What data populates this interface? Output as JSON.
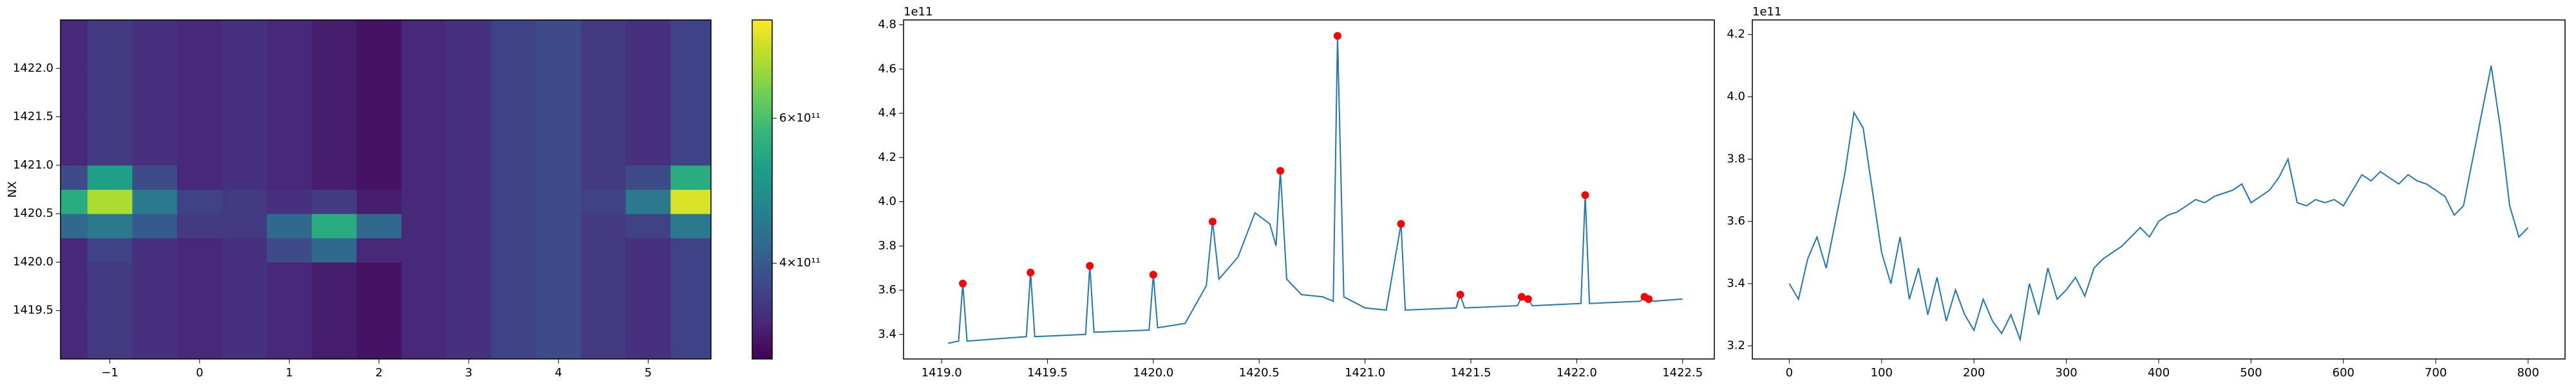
{
  "chart_data": [
    {
      "type": "heatmap",
      "ylabel": "NX",
      "colormap": "viridis",
      "colorscale": "log",
      "x": [
        -1.55,
        -1.25,
        -0.75,
        -0.25,
        0.25,
        0.75,
        1.25,
        1.75,
        2.25,
        2.75,
        3.25,
        3.75,
        4.25,
        4.75,
        5.25,
        5.7
      ],
      "y": [
        1419.0,
        1419.5,
        1420.0,
        1420.25,
        1420.5,
        1420.75,
        1421.0,
        1421.5,
        1422.0,
        1422.5
      ],
      "z": [
        [
          340000000000.0,
          360000000000.0,
          350000000000.0,
          340000000000.0,
          350000000000.0,
          340000000000.0,
          330000000000.0,
          320000000000.0,
          340000000000.0,
          350000000000.0,
          370000000000.0,
          380000000000.0,
          360000000000.0,
          350000000000.0,
          370000000000.0
        ],
        [
          340000000000.0,
          360000000000.0,
          350000000000.0,
          340000000000.0,
          350000000000.0,
          340000000000.0,
          330000000000.0,
          320000000000.0,
          340000000000.0,
          350000000000.0,
          370000000000.0,
          380000000000.0,
          360000000000.0,
          350000000000.0,
          370000000000.0
        ],
        [
          340000000000.0,
          370000000000.0,
          350000000000.0,
          340000000000.0,
          350000000000.0,
          380000000000.0,
          420000000000.0,
          340000000000.0,
          340000000000.0,
          350000000000.0,
          370000000000.0,
          380000000000.0,
          360000000000.0,
          350000000000.0,
          370000000000.0
        ],
        [
          420000000000.0,
          450000000000.0,
          400000000000.0,
          360000000000.0,
          360000000000.0,
          420000000000.0,
          550000000000.0,
          420000000000.0,
          340000000000.0,
          350000000000.0,
          370000000000.0,
          380000000000.0,
          360000000000.0,
          370000000000.0,
          450000000000.0
        ],
        [
          550000000000.0,
          700000000000.0,
          450000000000.0,
          370000000000.0,
          360000000000.0,
          350000000000.0,
          360000000000.0,
          330000000000.0,
          340000000000.0,
          350000000000.0,
          370000000000.0,
          380000000000.0,
          370000000000.0,
          450000000000.0,
          750000000000.0
        ],
        [
          380000000000.0,
          520000000000.0,
          380000000000.0,
          340000000000.0,
          350000000000.0,
          340000000000.0,
          330000000000.0,
          320000000000.0,
          340000000000.0,
          350000000000.0,
          370000000000.0,
          380000000000.0,
          360000000000.0,
          380000000000.0,
          550000000000.0
        ],
        [
          340000000000.0,
          360000000000.0,
          350000000000.0,
          340000000000.0,
          350000000000.0,
          340000000000.0,
          330000000000.0,
          320000000000.0,
          340000000000.0,
          350000000000.0,
          370000000000.0,
          380000000000.0,
          360000000000.0,
          350000000000.0,
          370000000000.0
        ],
        [
          340000000000.0,
          360000000000.0,
          350000000000.0,
          340000000000.0,
          350000000000.0,
          340000000000.0,
          330000000000.0,
          320000000000.0,
          340000000000.0,
          350000000000.0,
          370000000000.0,
          380000000000.0,
          360000000000.0,
          350000000000.0,
          370000000000.0
        ],
        [
          340000000000.0,
          360000000000.0,
          350000000000.0,
          340000000000.0,
          350000000000.0,
          340000000000.0,
          330000000000.0,
          320000000000.0,
          340000000000.0,
          350000000000.0,
          370000000000.0,
          380000000000.0,
          360000000000.0,
          350000000000.0,
          370000000000.0
        ]
      ],
      "xlim": [
        -1.55,
        5.7
      ],
      "ylim": [
        1419.0,
        1422.5
      ],
      "xticks": [
        {
          "value": -1,
          "label": "−1"
        },
        0,
        1,
        2,
        3,
        4,
        5
      ],
      "yticks": [
        1419.5,
        {
          "value": 1420.0,
          "label": "1420.0"
        },
        1420.5,
        {
          "value": 1421.0,
          "label": "1421.0"
        },
        1421.5,
        {
          "value": 1422.0,
          "label": "1422.0"
        }
      ],
      "clim": [
        306000000000.0,
        790000000000.0
      ],
      "cticks": [
        {
          "value": 400000000000.0,
          "label": "4×10¹¹"
        },
        {
          "value": 600000000000.0,
          "label": "6×10¹¹"
        }
      ]
    },
    {
      "type": "line",
      "y_offset": "1e11",
      "series": [
        {
          "color": "#1f77b4",
          "x": [
            1419.03,
            1419.08,
            1419.1,
            1419.12,
            1419.4,
            1419.42,
            1419.44,
            1419.68,
            1419.7,
            1419.72,
            1419.98,
            1420.0,
            1420.02,
            1420.15,
            1420.25,
            1420.28,
            1420.31,
            1420.4,
            1420.48,
            1420.55,
            1420.58,
            1420.6,
            1420.63,
            1420.7,
            1420.8,
            1420.85,
            1420.87,
            1420.9,
            1421.0,
            1421.1,
            1421.17,
            1421.19,
            1421.43,
            1421.45,
            1421.47,
            1421.72,
            1421.74,
            1421.77,
            1421.79,
            1422.02,
            1422.04,
            1422.06,
            1422.3,
            1422.32,
            1422.34,
            1422.36,
            1422.5
          ],
          "values": [
            336000000000.0,
            337000000000.0,
            363000000000.0,
            337000000000.0,
            339000000000.0,
            368000000000.0,
            339000000000.0,
            340000000000.0,
            371000000000.0,
            341000000000.0,
            342000000000.0,
            367000000000.0,
            343000000000.0,
            345000000000.0,
            362000000000.0,
            391000000000.0,
            365000000000.0,
            375000000000.0,
            395000000000.0,
            390000000000.0,
            380000000000.0,
            414000000000.0,
            365000000000.0,
            358000000000.0,
            357000000000.0,
            355000000000.0,
            475000000000.0,
            357000000000.0,
            352000000000.0,
            351000000000.0,
            390000000000.0,
            351000000000.0,
            352000000000.0,
            358000000000.0,
            352000000000.0,
            353000000000.0,
            357000000000.0,
            356000000000.0,
            353000000000.0,
            354000000000.0,
            403000000000.0,
            354000000000.0,
            355000000000.0,
            357000000000.0,
            356000000000.0,
            355000000000.0,
            356000000000.0
          ]
        },
        {
          "color": "#ff0000",
          "marker": "o",
          "x": [
            1419.1,
            1419.42,
            1419.7,
            1420.0,
            1420.28,
            1420.6,
            1420.87,
            1421.17,
            1421.45,
            1421.74,
            1421.77,
            1422.04,
            1422.32,
            1422.34
          ],
          "values": [
            363000000000.0,
            368000000000.0,
            371000000000.0,
            367000000000.0,
            391000000000.0,
            414000000000.0,
            475000000000.0,
            390000000000.0,
            358000000000.0,
            357000000000.0,
            356000000000.0,
            403000000000.0,
            357000000000.0,
            356000000000.0
          ]
        }
      ],
      "xlim": [
        1418.82,
        1422.65
      ],
      "ylim": [
        328900000000.0,
        482200000000.0
      ],
      "xticks": [
        {
          "value": 1419.0,
          "label": "1419.0"
        },
        1419.5,
        {
          "value": 1420.0,
          "label": "1420.0"
        },
        1420.5,
        {
          "value": 1421.0,
          "label": "1421.0"
        },
        1421.5,
        {
          "value": 1422.0,
          "label": "1422.0"
        },
        1422.5
      ],
      "yticks": [
        {
          "value": 340000000000.0,
          "label": "3.4"
        },
        {
          "value": 360000000000.0,
          "label": "3.6"
        },
        {
          "value": 380000000000.0,
          "label": "3.8"
        },
        {
          "value": 400000000000.0,
          "label": "4.0"
        },
        {
          "value": 420000000000.0,
          "label": "4.2"
        },
        {
          "value": 440000000000.0,
          "label": "4.4"
        },
        {
          "value": 460000000000.0,
          "label": "4.6"
        },
        {
          "value": 480000000000.0,
          "label": "4.8"
        }
      ]
    },
    {
      "type": "line",
      "y_offset": "1e11",
      "series": [
        {
          "color": "#1f77b4",
          "x": [
            0,
            10,
            20,
            30,
            40,
            50,
            60,
            70,
            80,
            90,
            100,
            110,
            120,
            130,
            140,
            150,
            160,
            170,
            180,
            190,
            200,
            210,
            220,
            230,
            240,
            250,
            260,
            270,
            280,
            290,
            300,
            310,
            320,
            330,
            340,
            350,
            360,
            370,
            380,
            390,
            400,
            410,
            420,
            430,
            440,
            450,
            460,
            470,
            480,
            490,
            500,
            510,
            520,
            530,
            540,
            550,
            560,
            570,
            580,
            590,
            600,
            610,
            620,
            630,
            640,
            650,
            660,
            670,
            680,
            690,
            700,
            710,
            720,
            730,
            740,
            750,
            760,
            770,
            780,
            790,
            800
          ],
          "values": [
            340000000000.0,
            335000000000.0,
            348000000000.0,
            355000000000.0,
            345000000000.0,
            360000000000.0,
            375000000000.0,
            395000000000.0,
            390000000000.0,
            370000000000.0,
            350000000000.0,
            340000000000.0,
            355000000000.0,
            335000000000.0,
            345000000000.0,
            330000000000.0,
            342000000000.0,
            328000000000.0,
            338000000000.0,
            330000000000.0,
            325000000000.0,
            335000000000.0,
            328000000000.0,
            324000000000.0,
            330000000000.0,
            322000000000.0,
            340000000000.0,
            330000000000.0,
            345000000000.0,
            335000000000.0,
            338000000000.0,
            342000000000.0,
            336000000000.0,
            345000000000.0,
            348000000000.0,
            350000000000.0,
            352000000000.0,
            355000000000.0,
            358000000000.0,
            355000000000.0,
            360000000000.0,
            362000000000.0,
            363000000000.0,
            365000000000.0,
            367000000000.0,
            366000000000.0,
            368000000000.0,
            369000000000.0,
            370000000000.0,
            372000000000.0,
            366000000000.0,
            368000000000.0,
            370000000000.0,
            374000000000.0,
            380000000000.0,
            366000000000.0,
            365000000000.0,
            367000000000.0,
            366000000000.0,
            367000000000.0,
            365000000000.0,
            370000000000.0,
            375000000000.0,
            373000000000.0,
            376000000000.0,
            374000000000.0,
            372000000000.0,
            375000000000.0,
            373000000000.0,
            372000000000.0,
            370000000000.0,
            368000000000.0,
            362000000000.0,
            365000000000.0,
            380000000000.0,
            395000000000.0,
            410000000000.0,
            390000000000.0,
            365000000000.0,
            355000000000.0,
            358000000000.0
          ]
        }
      ],
      "xlim": [
        -40,
        840
      ],
      "ylim": [
        315800000000.0,
        424700000000.0
      ],
      "xticks": [
        0,
        100,
        200,
        300,
        400,
        500,
        600,
        700,
        800
      ],
      "yticks": [
        {
          "value": 320000000000.0,
          "label": "3.2"
        },
        {
          "value": 340000000000.0,
          "label": "3.4"
        },
        {
          "value": 360000000000.0,
          "label": "3.6"
        },
        {
          "value": 380000000000.0,
          "label": "3.8"
        },
        {
          "value": 400000000000.0,
          "label": "4.0"
        },
        {
          "value": 420000000000.0,
          "label": "4.2"
        }
      ]
    }
  ]
}
